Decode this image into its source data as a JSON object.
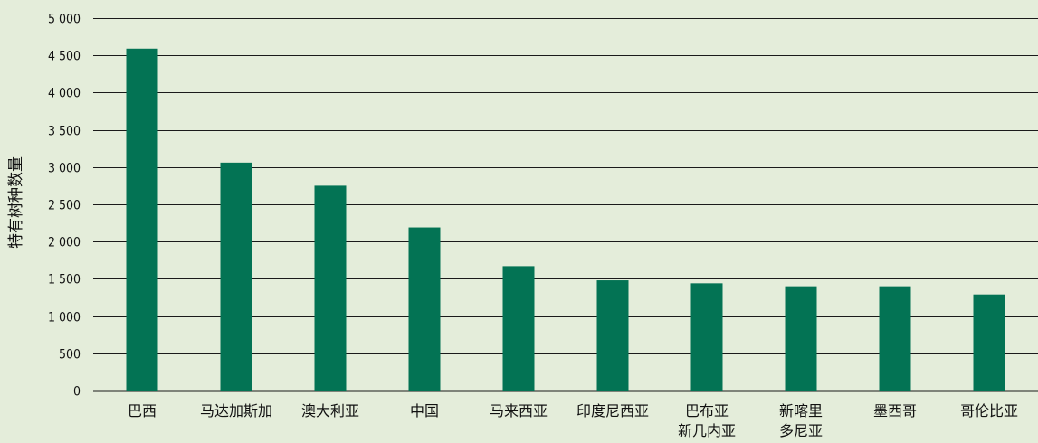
{
  "chart_data": {
    "type": "bar",
    "title": "",
    "xlabel": "",
    "ylabel": "特有树种数量",
    "categories": [
      [
        "巴西"
      ],
      [
        "马达加斯加"
      ],
      [
        "澳大利亚"
      ],
      [
        "中国"
      ],
      [
        "马来西亚"
      ],
      [
        "印度尼西亚"
      ],
      [
        "巴布亚",
        "新几内亚"
      ],
      [
        "新喀里",
        "多尼亚"
      ],
      [
        "墨西哥"
      ],
      [
        "哥伦比亚"
      ]
    ],
    "values": [
      4590,
      3060,
      2750,
      2190,
      1670,
      1480,
      1440,
      1400,
      1400,
      1290
    ],
    "ylim": [
      0,
      5000
    ],
    "yticks": [
      0,
      500,
      1000,
      1500,
      2000,
      2500,
      3000,
      3500,
      4000,
      4500,
      5000
    ],
    "ytick_labels": [
      "0",
      "500",
      "1 000",
      "1 500",
      "2 000",
      "2 500",
      "3 000",
      "3 500",
      "4 000",
      "4 500",
      "5 000"
    ],
    "grid": true,
    "colors": {
      "bar": "#037354",
      "background": "#e4edda",
      "grid": "#1a1a1a"
    }
  }
}
